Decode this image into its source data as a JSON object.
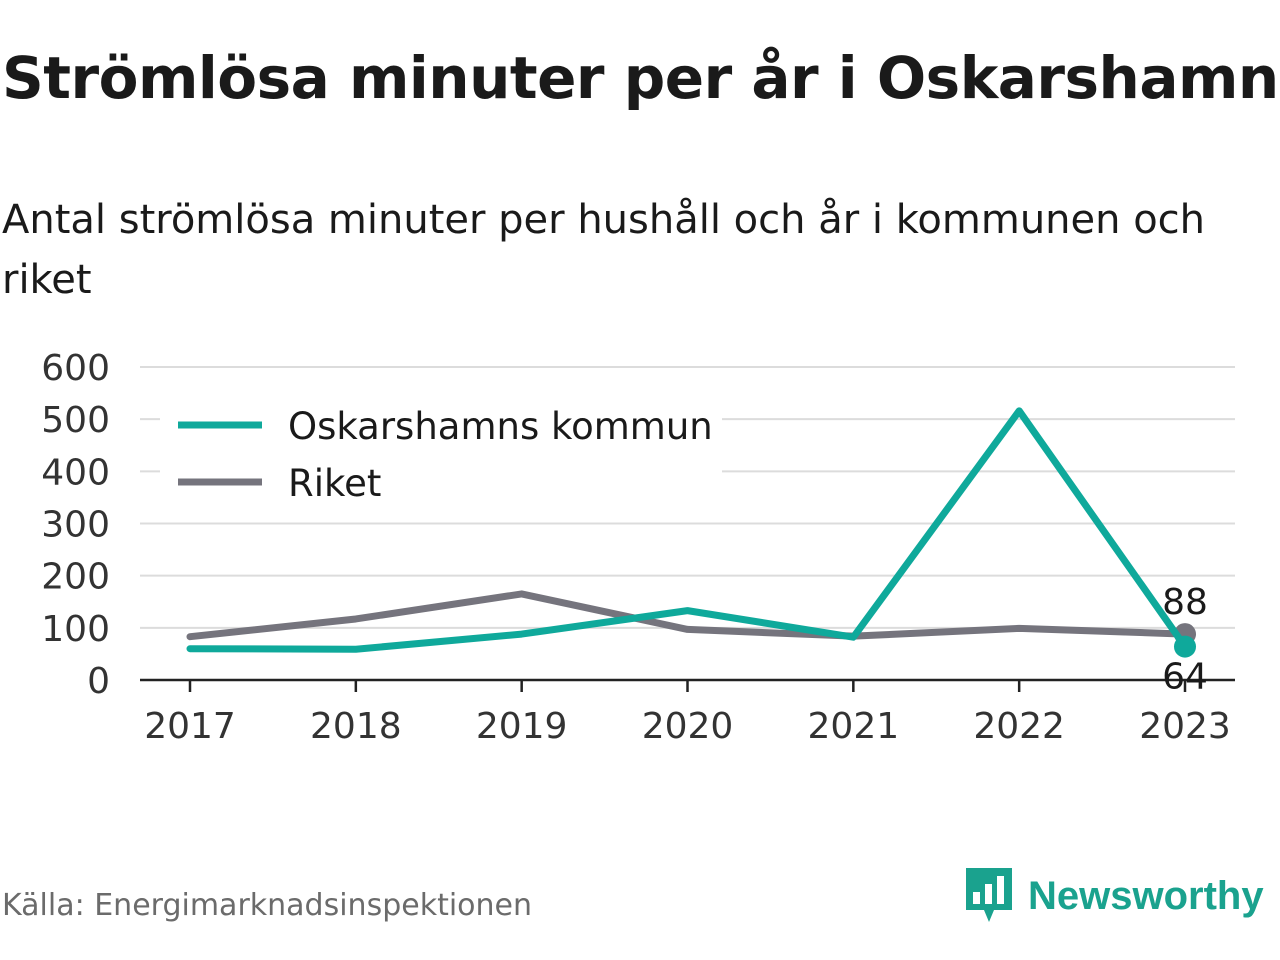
{
  "title": "Strömlösa minuter per år i Oskarshamn",
  "subtitle": "Antal strömlösa minuter per hushåll och år i kommunen och riket",
  "source": "Källa: Energimarknadsinspektionen",
  "brand": {
    "name": "Newsworthy",
    "icon": "newsworthy-logo-icon"
  },
  "colors": {
    "oskarshamn": "#0fa99b",
    "riket": "#75747d",
    "grid": "#dcdcdc",
    "axis": "#222222"
  },
  "chart_data": {
    "type": "line",
    "x": [
      "2017",
      "2018",
      "2019",
      "2020",
      "2021",
      "2022",
      "2023"
    ],
    "ylim": [
      0,
      600
    ],
    "yticks": [
      "0",
      "100",
      "200",
      "300",
      "400",
      "500",
      "600"
    ],
    "grid": true,
    "legend_position": "top-left",
    "series": [
      {
        "name": "Oskarshamns kommun",
        "values": [
          60,
          59,
          88,
          133,
          82,
          516,
          64
        ],
        "end_label": "64"
      },
      {
        "name": "Riket",
        "values": [
          83,
          117,
          165,
          97,
          84,
          99,
          88
        ],
        "end_label": "88"
      }
    ]
  }
}
